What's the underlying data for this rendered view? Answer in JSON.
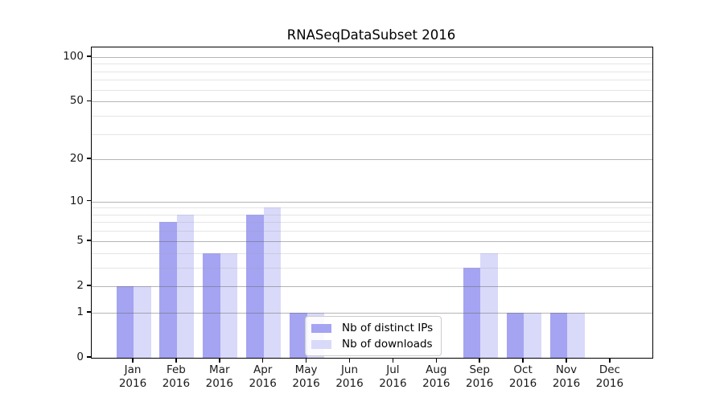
{
  "chart_data": {
    "type": "bar",
    "title": "RNASeqDataSubset 2016",
    "x_months": [
      "Jan",
      "Feb",
      "Mar",
      "Apr",
      "May",
      "Jun",
      "Jul",
      "Aug",
      "Sep",
      "Oct",
      "Nov",
      "Dec"
    ],
    "x_year": "2016",
    "series": [
      {
        "name": "Nb of distinct IPs",
        "color": "#a4a4f2",
        "values": [
          2,
          7,
          4,
          8,
          1,
          0,
          0,
          0,
          3,
          1,
          1,
          0
        ]
      },
      {
        "name": "Nb of downloads",
        "color": "#d9d9fa",
        "values": [
          2,
          8,
          4,
          9,
          1,
          0,
          0,
          0,
          4,
          1,
          1,
          0
        ]
      }
    ],
    "yscale": "log1p",
    "ylim": [
      0,
      115
    ],
    "yticks": [
      0,
      1,
      2,
      5,
      10,
      20,
      50,
      100
    ],
    "minor_gridlines": [
      3,
      4,
      6,
      7,
      8,
      9,
      30,
      40,
      60,
      70,
      80,
      90
    ],
    "major_gridlines": [
      1,
      2,
      5,
      10,
      20,
      50,
      100
    ],
    "grid": true,
    "legend": {
      "position": "lower-center",
      "entries": [
        "Nb of distinct IPs",
        "Nb of downloads"
      ]
    },
    "colors": {
      "series_1": "#a4a4f2",
      "series_2": "#d9d9fa",
      "major_grid": "#b0b0b0",
      "minor_grid": "#e6e6e6",
      "spine": "#000000",
      "text": "#1a1a1a"
    }
  }
}
